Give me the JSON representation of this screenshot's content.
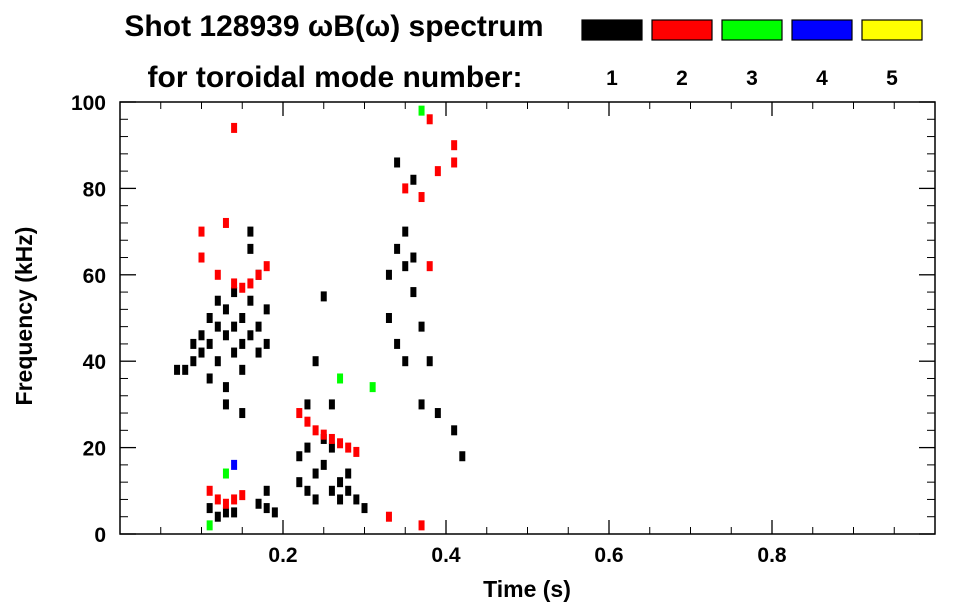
{
  "chart_data": {
    "type": "scatter",
    "title": "Shot 128939 ωB(ω) spectrum",
    "subtitle": "for toroidal mode number:",
    "xlabel": "Time (s)",
    "ylabel": "Frequency (kHz)",
    "xlim": [
      0.0,
      1.0
    ],
    "ylim": [
      0,
      100
    ],
    "x_ticks": [
      0.2,
      0.4,
      0.6,
      0.8
    ],
    "x_tick_labels": [
      "0.2",
      "0.4",
      "0.6",
      "0.8"
    ],
    "y_ticks": [
      0,
      20,
      40,
      60,
      80,
      100
    ],
    "y_tick_labels": [
      "0",
      "20",
      "40",
      "60",
      "80",
      "100"
    ],
    "grid": false,
    "legend_position": "top-right",
    "series": [
      {
        "name": "1",
        "color": "#000000",
        "points": [
          [
            0.07,
            38
          ],
          [
            0.08,
            38
          ],
          [
            0.09,
            40
          ],
          [
            0.09,
            44
          ],
          [
            0.1,
            42
          ],
          [
            0.1,
            46
          ],
          [
            0.11,
            44
          ],
          [
            0.11,
            50
          ],
          [
            0.11,
            36
          ],
          [
            0.12,
            48
          ],
          [
            0.12,
            54
          ],
          [
            0.12,
            40
          ],
          [
            0.13,
            46
          ],
          [
            0.13,
            52
          ],
          [
            0.13,
            34
          ],
          [
            0.14,
            48
          ],
          [
            0.14,
            42
          ],
          [
            0.14,
            56
          ],
          [
            0.15,
            44
          ],
          [
            0.15,
            50
          ],
          [
            0.15,
            38
          ],
          [
            0.16,
            46
          ],
          [
            0.16,
            54
          ],
          [
            0.16,
            70
          ],
          [
            0.16,
            66
          ],
          [
            0.17,
            48
          ],
          [
            0.17,
            42
          ],
          [
            0.17,
            60
          ],
          [
            0.18,
            52
          ],
          [
            0.18,
            44
          ],
          [
            0.13,
            30
          ],
          [
            0.15,
            28
          ],
          [
            0.11,
            6
          ],
          [
            0.12,
            4
          ],
          [
            0.13,
            5
          ],
          [
            0.14,
            5
          ],
          [
            0.17,
            7
          ],
          [
            0.18,
            6
          ],
          [
            0.18,
            10
          ],
          [
            0.19,
            5
          ],
          [
            0.22,
            18
          ],
          [
            0.22,
            12
          ],
          [
            0.23,
            20
          ],
          [
            0.23,
            10
          ],
          [
            0.24,
            14
          ],
          [
            0.24,
            8
          ],
          [
            0.25,
            22
          ],
          [
            0.25,
            16
          ],
          [
            0.26,
            10
          ],
          [
            0.26,
            20
          ],
          [
            0.27,
            12
          ],
          [
            0.27,
            8
          ],
          [
            0.28,
            14
          ],
          [
            0.28,
            10
          ],
          [
            0.29,
            8
          ],
          [
            0.3,
            6
          ],
          [
            0.24,
            40
          ],
          [
            0.25,
            55
          ],
          [
            0.23,
            30
          ],
          [
            0.26,
            30
          ],
          [
            0.33,
            60
          ],
          [
            0.33,
            50
          ],
          [
            0.34,
            66
          ],
          [
            0.34,
            44
          ],
          [
            0.35,
            62
          ],
          [
            0.35,
            70
          ],
          [
            0.35,
            40
          ],
          [
            0.36,
            64
          ],
          [
            0.36,
            56
          ],
          [
            0.37,
            48
          ],
          [
            0.37,
            30
          ],
          [
            0.36,
            82
          ],
          [
            0.34,
            86
          ],
          [
            0.38,
            40
          ],
          [
            0.39,
            28
          ],
          [
            0.41,
            24
          ],
          [
            0.42,
            18
          ]
        ]
      },
      {
        "name": "2",
        "color": "#ff0000",
        "points": [
          [
            0.1,
            64
          ],
          [
            0.12,
            60
          ],
          [
            0.14,
            58
          ],
          [
            0.15,
            57
          ],
          [
            0.16,
            58
          ],
          [
            0.17,
            60
          ],
          [
            0.18,
            62
          ],
          [
            0.1,
            70
          ],
          [
            0.13,
            72
          ],
          [
            0.11,
            10
          ],
          [
            0.12,
            8
          ],
          [
            0.13,
            7
          ],
          [
            0.14,
            8
          ],
          [
            0.15,
            9
          ],
          [
            0.14,
            94
          ],
          [
            0.22,
            28
          ],
          [
            0.23,
            26
          ],
          [
            0.24,
            24
          ],
          [
            0.25,
            23
          ],
          [
            0.26,
            22
          ],
          [
            0.27,
            21
          ],
          [
            0.28,
            20
          ],
          [
            0.29,
            19
          ],
          [
            0.35,
            80
          ],
          [
            0.37,
            78
          ],
          [
            0.39,
            84
          ],
          [
            0.38,
            96
          ],
          [
            0.41,
            86
          ],
          [
            0.41,
            90
          ],
          [
            0.38,
            62
          ],
          [
            0.37,
            2
          ],
          [
            0.33,
            4
          ]
        ]
      },
      {
        "name": "3",
        "color": "#00ff00",
        "points": [
          [
            0.13,
            14
          ],
          [
            0.11,
            2
          ],
          [
            0.37,
            98
          ],
          [
            0.31,
            34
          ],
          [
            0.27,
            36
          ]
        ]
      },
      {
        "name": "4",
        "color": "#0000ff",
        "points": [
          [
            0.14,
            16
          ]
        ]
      },
      {
        "name": "5",
        "color": "#ffff00",
        "points": []
      }
    ]
  }
}
